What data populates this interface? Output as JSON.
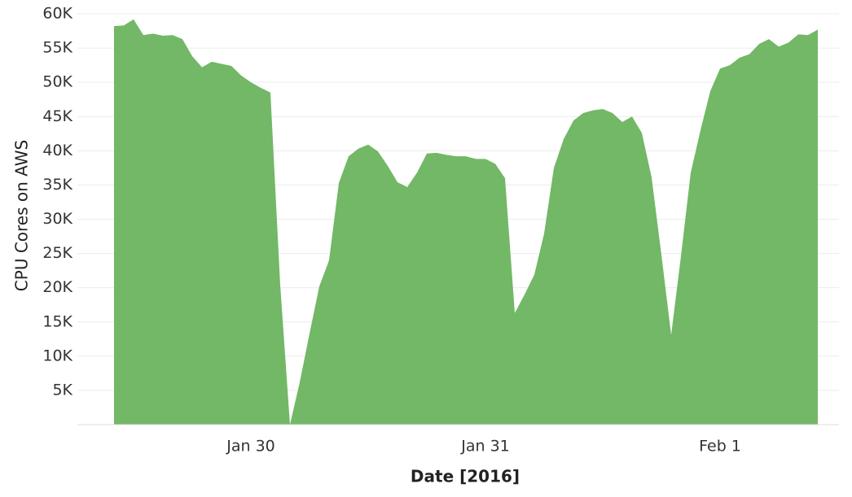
{
  "chart_data": {
    "type": "area",
    "x_label": "Date [2016]",
    "y_label": "CPU Cores on AWS",
    "color": "#72b866",
    "grid": true,
    "ylim": [
      0,
      60000
    ],
    "yticks": [
      {
        "value": 5000,
        "label": "5K"
      },
      {
        "value": 10000,
        "label": "10K"
      },
      {
        "value": 15000,
        "label": "15K"
      },
      {
        "value": 20000,
        "label": "20K"
      },
      {
        "value": 25000,
        "label": "25K"
      },
      {
        "value": 30000,
        "label": "30K"
      },
      {
        "value": 35000,
        "label": "35K"
      },
      {
        "value": 40000,
        "label": "40K"
      },
      {
        "value": 45000,
        "label": "45K"
      },
      {
        "value": 50000,
        "label": "50K"
      },
      {
        "value": 55000,
        "label": "55K"
      },
      {
        "value": 60000,
        "label": "60K"
      }
    ],
    "categories": [
      null,
      null,
      null,
      null,
      null,
      null,
      null,
      null,
      null,
      null,
      null,
      null,
      null,
      null,
      "Jan 30",
      null,
      null,
      null,
      null,
      null,
      null,
      null,
      null,
      null,
      null,
      null,
      null,
      null,
      null,
      null,
      null,
      null,
      null,
      null,
      null,
      null,
      null,
      null,
      "Jan 31",
      null,
      null,
      null,
      null,
      null,
      null,
      null,
      null,
      null,
      null,
      null,
      null,
      null,
      null,
      null,
      null,
      null,
      null,
      null,
      null,
      null,
      null,
      null,
      "Feb 1",
      null,
      null,
      null,
      null,
      null,
      null,
      null,
      null,
      null,
      null
    ],
    "values": [
      58200,
      58300,
      59200,
      56900,
      57100,
      56800,
      56900,
      56300,
      53800,
      52200,
      53000,
      52700,
      52400,
      51000,
      50000,
      49200,
      48500,
      20400,
      0,
      6200,
      13300,
      20200,
      24000,
      35300,
      39200,
      40300,
      40900,
      39900,
      37800,
      35400,
      34700,
      36800,
      39600,
      39700,
      39400,
      39200,
      39200,
      38800,
      38800,
      38100,
      36000,
      16300,
      19000,
      21900,
      27900,
      37500,
      41700,
      44400,
      45500,
      45900,
      46100,
      45500,
      44200,
      45000,
      42600,
      36100,
      24800,
      13100,
      24600,
      36800,
      43000,
      48700,
      52000,
      52500,
      53600,
      54100,
      55600,
      56300,
      55200,
      55800,
      57000,
      56900,
      57700
    ]
  }
}
